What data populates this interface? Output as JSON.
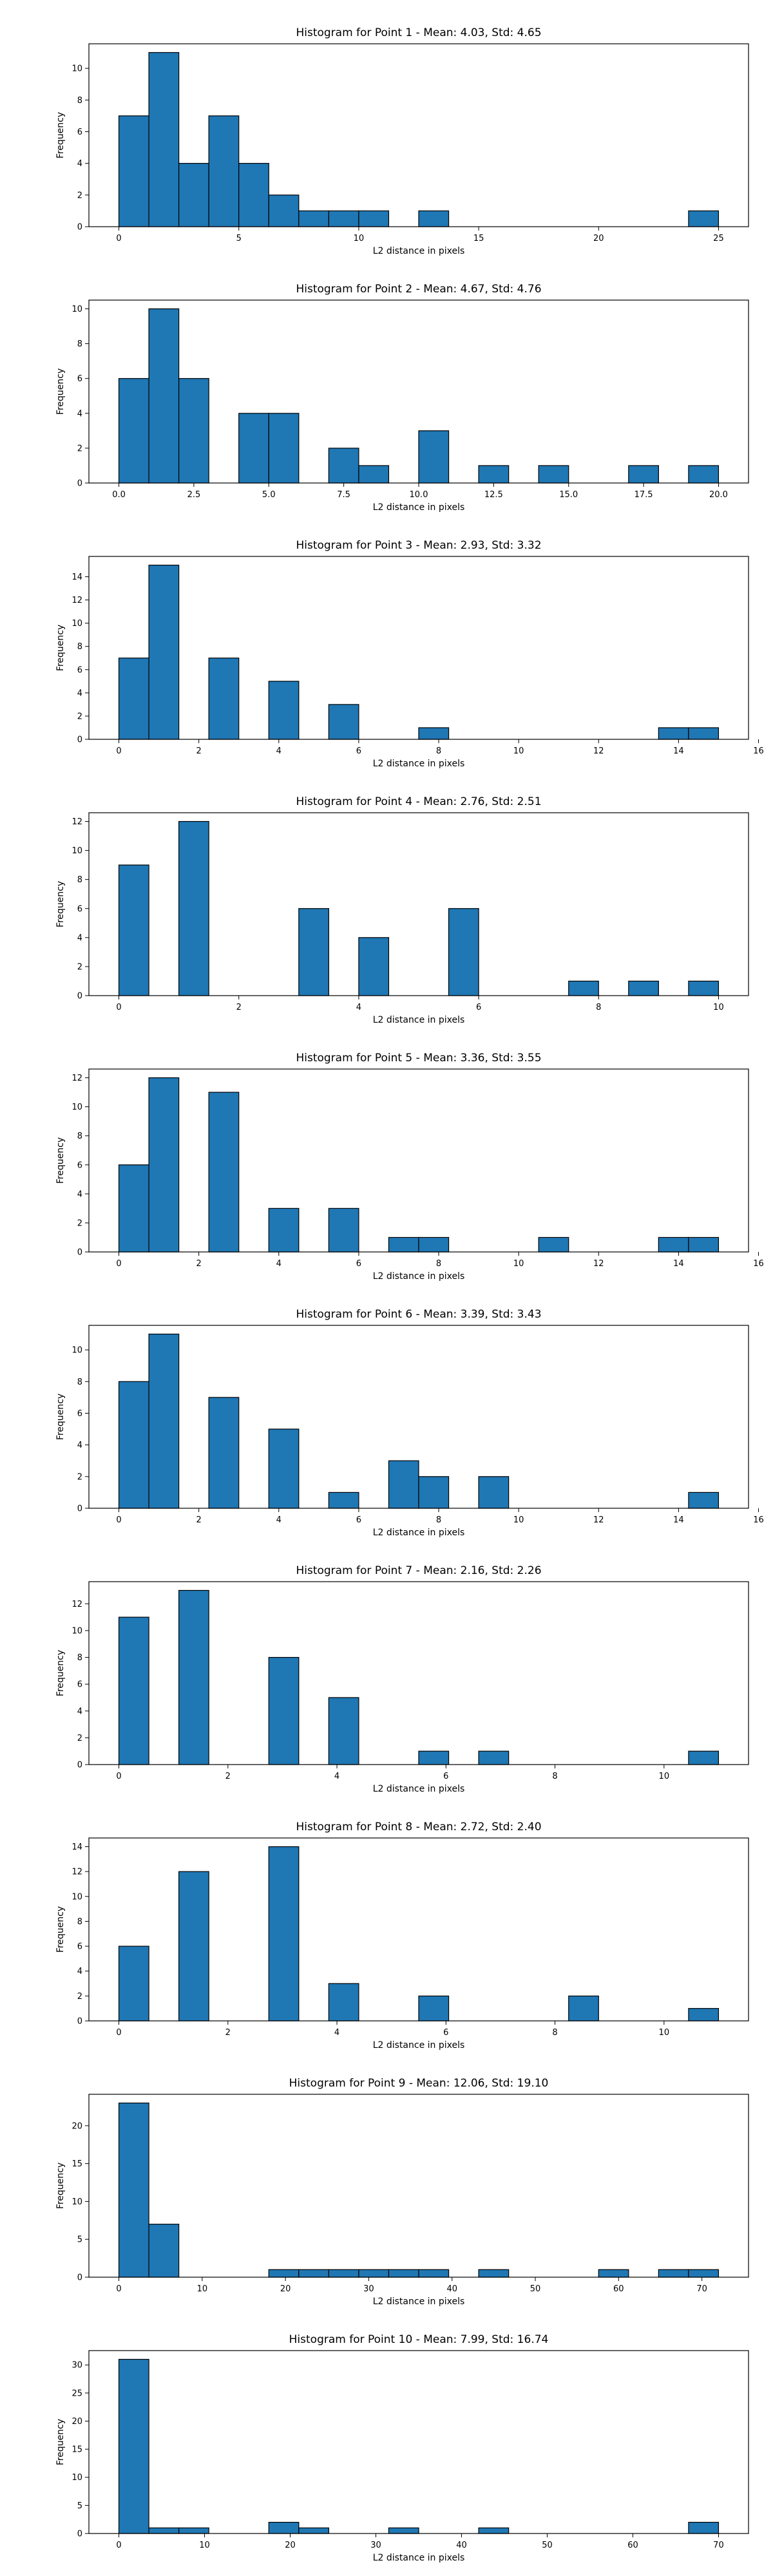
{
  "chart_data": [
    {
      "type": "bar",
      "title": "Histogram for Point 1 - Mean: 4.03, Std: 4.65",
      "xlabel": "L2 distance in pixels",
      "ylabel": "Frequency",
      "xlim": [
        -1.25,
        26.25
      ],
      "ylim": [
        0,
        11.55
      ],
      "xticks": [
        0,
        5,
        10,
        15,
        20,
        25
      ],
      "xtick_labels": [
        "0",
        "5",
        "10",
        "15",
        "20",
        "25"
      ],
      "yticks": [
        0,
        2,
        4,
        6,
        8,
        10
      ],
      "ytick_labels": [
        "0",
        "2",
        "4",
        "6",
        "8",
        "10"
      ],
      "bin_edges": [
        0,
        1.25,
        2.5,
        3.75,
        5,
        6.25,
        7.5,
        8.75,
        10,
        11.25,
        12.5,
        13.75,
        15,
        16.25,
        17.5,
        18.75,
        20,
        21.25,
        22.5,
        23.75,
        25
      ],
      "values": [
        7,
        11,
        4,
        7,
        4,
        2,
        1,
        1,
        1,
        0,
        1,
        0,
        0,
        0,
        0,
        0,
        0,
        0,
        0,
        1
      ],
      "color": "#1f77b4"
    },
    {
      "type": "bar",
      "title": "Histogram for Point 2 - Mean: 4.67, Std: 4.76",
      "xlabel": "L2 distance in pixels",
      "ylabel": "Frequency",
      "xlim": [
        -1.0,
        21.0
      ],
      "ylim": [
        0,
        10.5
      ],
      "xticks": [
        0,
        2.5,
        5,
        7.5,
        10,
        12.5,
        15,
        17.5,
        20
      ],
      "xtick_labels": [
        "0.0",
        "2.5",
        "5.0",
        "7.5",
        "10.0",
        "12.5",
        "15.0",
        "17.5",
        "20.0"
      ],
      "yticks": [
        0,
        2,
        4,
        6,
        8,
        10
      ],
      "ytick_labels": [
        "0",
        "2",
        "4",
        "6",
        "8",
        "10"
      ],
      "bin_edges": [
        0,
        1,
        2,
        3,
        4,
        5,
        6,
        7,
        8,
        9,
        10,
        11,
        12,
        13,
        14,
        15,
        16,
        17,
        18,
        19,
        20
      ],
      "values": [
        6,
        10,
        6,
        0,
        4,
        4,
        0,
        2,
        1,
        0,
        3,
        0,
        1,
        0,
        1,
        0,
        0,
        1,
        0,
        1
      ],
      "color": "#1f77b4"
    },
    {
      "type": "bar",
      "title": "Histogram for Point 3 - Mean: 2.93, Std: 3.32",
      "xlabel": "L2 distance in pixels",
      "ylabel": "Frequency",
      "xlim": [
        -0.75,
        15.75
      ],
      "ylim": [
        0,
        15.75
      ],
      "xticks": [
        0,
        2,
        4,
        6,
        8,
        10,
        12,
        14,
        16
      ],
      "xtick_labels": [
        "0",
        "2",
        "4",
        "6",
        "8",
        "10",
        "12",
        "14",
        "16"
      ],
      "yticks": [
        0,
        2,
        4,
        6,
        8,
        10,
        12,
        14
      ],
      "ytick_labels": [
        "0",
        "2",
        "4",
        "6",
        "8",
        "10",
        "12",
        "14"
      ],
      "bin_edges": [
        0,
        0.75,
        1.5,
        2.25,
        3,
        3.75,
        4.5,
        5.25,
        6,
        6.75,
        7.5,
        8.25,
        9,
        9.75,
        10.5,
        11.25,
        12,
        12.75,
        13.5,
        14.25,
        15
      ],
      "values": [
        7,
        15,
        0,
        7,
        0,
        5,
        0,
        3,
        0,
        0,
        1,
        0,
        0,
        0,
        0,
        0,
        0,
        0,
        1,
        1
      ],
      "color": "#1f77b4"
    },
    {
      "type": "bar",
      "title": "Histogram for Point 4 - Mean: 2.76, Std: 2.51",
      "xlabel": "L2 distance in pixels",
      "ylabel": "Frequency",
      "xlim": [
        -0.5,
        10.5
      ],
      "ylim": [
        0,
        12.6
      ],
      "xticks": [
        0,
        2,
        4,
        6,
        8,
        10
      ],
      "xtick_labels": [
        "0",
        "2",
        "4",
        "6",
        "8",
        "10"
      ],
      "yticks": [
        0,
        2,
        4,
        6,
        8,
        10,
        12
      ],
      "ytick_labels": [
        "0",
        "2",
        "4",
        "6",
        "8",
        "10",
        "12"
      ],
      "bin_edges": [
        0,
        0.5,
        1,
        1.5,
        2,
        2.5,
        3,
        3.5,
        4,
        4.5,
        5,
        5.5,
        6,
        6.5,
        7,
        7.5,
        8,
        8.5,
        9,
        9.5,
        10
      ],
      "values": [
        9,
        0,
        12,
        0,
        0,
        0,
        6,
        0,
        4,
        0,
        0,
        6,
        0,
        0,
        0,
        1,
        0,
        1,
        0,
        1
      ],
      "color": "#1f77b4"
    },
    {
      "type": "bar",
      "title": "Histogram for Point 5 - Mean: 3.36, Std: 3.55",
      "xlabel": "L2 distance in pixels",
      "ylabel": "Frequency",
      "xlim": [
        -0.75,
        15.75
      ],
      "ylim": [
        0,
        12.6
      ],
      "xticks": [
        0,
        2,
        4,
        6,
        8,
        10,
        12,
        14,
        16
      ],
      "xtick_labels": [
        "0",
        "2",
        "4",
        "6",
        "8",
        "10",
        "12",
        "14",
        "16"
      ],
      "yticks": [
        0,
        2,
        4,
        6,
        8,
        10,
        12
      ],
      "ytick_labels": [
        "0",
        "2",
        "4",
        "6",
        "8",
        "10",
        "12"
      ],
      "bin_edges": [
        0,
        0.75,
        1.5,
        2.25,
        3,
        3.75,
        4.5,
        5.25,
        6,
        6.75,
        7.5,
        8.25,
        9,
        9.75,
        10.5,
        11.25,
        12,
        12.75,
        13.5,
        14.25,
        15
      ],
      "values": [
        6,
        12,
        0,
        11,
        0,
        3,
        0,
        3,
        0,
        1,
        1,
        0,
        0,
        0,
        1,
        0,
        0,
        0,
        1,
        1
      ],
      "color": "#1f77b4"
    },
    {
      "type": "bar",
      "title": "Histogram for Point 6 - Mean: 3.39, Std: 3.43",
      "xlabel": "L2 distance in pixels",
      "ylabel": "Frequency",
      "xlim": [
        -0.75,
        15.75
      ],
      "ylim": [
        0,
        11.55
      ],
      "xticks": [
        0,
        2,
        4,
        6,
        8,
        10,
        12,
        14,
        16
      ],
      "xtick_labels": [
        "0",
        "2",
        "4",
        "6",
        "8",
        "10",
        "12",
        "14",
        "16"
      ],
      "yticks": [
        0,
        2,
        4,
        6,
        8,
        10
      ],
      "ytick_labels": [
        "0",
        "2",
        "4",
        "6",
        "8",
        "10"
      ],
      "bin_edges": [
        0,
        0.75,
        1.5,
        2.25,
        3,
        3.75,
        4.5,
        5.25,
        6,
        6.75,
        7.5,
        8.25,
        9,
        9.75,
        10.5,
        11.25,
        12,
        12.75,
        13.5,
        14.25,
        15
      ],
      "values": [
        8,
        11,
        0,
        7,
        0,
        5,
        0,
        1,
        0,
        3,
        2,
        0,
        2,
        0,
        0,
        0,
        0,
        0,
        0,
        1
      ],
      "color": "#1f77b4"
    },
    {
      "type": "bar",
      "title": "Histogram for Point 7 - Mean: 2.16, Std: 2.26",
      "xlabel": "L2 distance in pixels",
      "ylabel": "Frequency",
      "xlim": [
        -0.55,
        11.55
      ],
      "ylim": [
        0,
        13.65
      ],
      "xticks": [
        0,
        2,
        4,
        6,
        8,
        10
      ],
      "xtick_labels": [
        "0",
        "2",
        "4",
        "6",
        "8",
        "10"
      ],
      "yticks": [
        0,
        2,
        4,
        6,
        8,
        10,
        12
      ],
      "ytick_labels": [
        "0",
        "2",
        "4",
        "6",
        "8",
        "10",
        "12"
      ],
      "bin_edges": [
        0,
        0.55,
        1.1,
        1.65,
        2.2,
        2.75,
        3.3,
        3.85,
        4.4,
        4.95,
        5.5,
        6.05,
        6.6,
        7.15,
        7.7,
        8.25,
        8.8,
        9.35,
        9.9,
        10.45,
        11
      ],
      "values": [
        11,
        0,
        13,
        0,
        0,
        8,
        0,
        5,
        0,
        0,
        1,
        0,
        1,
        0,
        0,
        0,
        0,
        0,
        0,
        1
      ],
      "color": "#1f77b4"
    },
    {
      "type": "bar",
      "title": "Histogram for Point 8 - Mean: 2.72, Std: 2.40",
      "xlabel": "L2 distance in pixels",
      "ylabel": "Frequency",
      "xlim": [
        -0.55,
        11.55
      ],
      "ylim": [
        0,
        14.7
      ],
      "xticks": [
        0,
        2,
        4,
        6,
        8,
        10
      ],
      "xtick_labels": [
        "0",
        "2",
        "4",
        "6",
        "8",
        "10"
      ],
      "yticks": [
        0,
        2,
        4,
        6,
        8,
        10,
        12,
        14
      ],
      "ytick_labels": [
        "0",
        "2",
        "4",
        "6",
        "8",
        "10",
        "12",
        "14"
      ],
      "bin_edges": [
        0,
        0.55,
        1.1,
        1.65,
        2.2,
        2.75,
        3.3,
        3.85,
        4.4,
        4.95,
        5.5,
        6.05,
        6.6,
        7.15,
        7.7,
        8.25,
        8.8,
        9.35,
        9.9,
        10.45,
        11
      ],
      "values": [
        6,
        0,
        12,
        0,
        0,
        14,
        0,
        3,
        0,
        0,
        2,
        0,
        0,
        0,
        0,
        2,
        0,
        0,
        0,
        1
      ],
      "color": "#1f77b4"
    },
    {
      "type": "bar",
      "title": "Histogram for Point 9 - Mean: 12.06, Std: 19.10",
      "xlabel": "L2 distance in pixels",
      "ylabel": "Frequency",
      "xlim": [
        -3.6,
        75.6
      ],
      "ylim": [
        0,
        24.15
      ],
      "xticks": [
        0,
        10,
        20,
        30,
        40,
        50,
        60,
        70
      ],
      "xtick_labels": [
        "0",
        "10",
        "20",
        "30",
        "40",
        "50",
        "60",
        "70"
      ],
      "yticks": [
        0,
        5,
        10,
        15,
        20
      ],
      "ytick_labels": [
        "0",
        "5",
        "10",
        "15",
        "20"
      ],
      "bin_edges": [
        0,
        3.6,
        7.2,
        10.8,
        14.4,
        18,
        21.6,
        25.2,
        28.8,
        32.4,
        36,
        39.6,
        43.2,
        46.8,
        50.4,
        54,
        57.6,
        61.2,
        64.8,
        68.4,
        72
      ],
      "values": [
        23,
        7,
        0,
        0,
        0,
        1,
        1,
        1,
        1,
        1,
        1,
        0,
        1,
        0,
        0,
        0,
        1,
        0,
        1,
        1
      ],
      "color": "#1f77b4"
    },
    {
      "type": "bar",
      "title": "Histogram for Point 10 - Mean: 7.99, Std: 16.74",
      "xlabel": "L2 distance in pixels",
      "ylabel": "Frequency",
      "xlim": [
        -3.5,
        73.5
      ],
      "ylim": [
        0,
        32.55
      ],
      "xticks": [
        0,
        10,
        20,
        30,
        40,
        50,
        60,
        70
      ],
      "xtick_labels": [
        "0",
        "10",
        "20",
        "30",
        "40",
        "50",
        "60",
        "70"
      ],
      "yticks": [
        0,
        5,
        10,
        15,
        20,
        25,
        30
      ],
      "ytick_labels": [
        "0",
        "5",
        "10",
        "15",
        "20",
        "25",
        "30"
      ],
      "bin_edges": [
        0,
        3.5,
        7,
        10.5,
        14,
        17.5,
        21,
        24.5,
        28,
        31.5,
        35,
        38.5,
        42,
        45.5,
        49,
        52.5,
        56,
        59.5,
        63,
        66.5,
        70
      ],
      "values": [
        31,
        1,
        1,
        0,
        0,
        2,
        1,
        0,
        0,
        1,
        0,
        0,
        1,
        0,
        0,
        0,
        0,
        0,
        0,
        2
      ],
      "color": "#1f77b4"
    }
  ]
}
